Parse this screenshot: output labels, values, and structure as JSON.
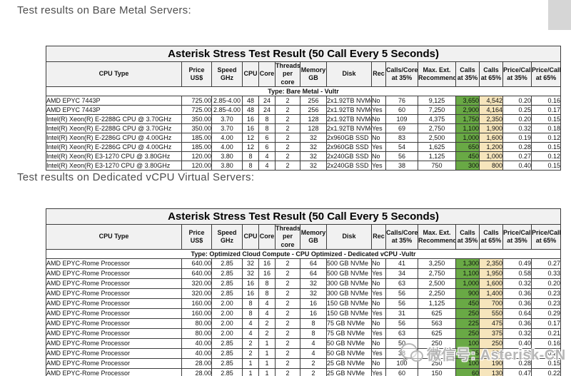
{
  "headings": {
    "bare_metal": "Test results on Bare Metal Servers:",
    "dedicated_vcpu": "Test results on Dedicated vCPU Virtual Servers:"
  },
  "table_title": "Asterisk Stress Test Result (50 Call Every 5 Seconds)",
  "columns": [
    {
      "label": "CPU Type",
      "align": "left"
    },
    {
      "label": "Price US$",
      "align": "right"
    },
    {
      "label": "Speed\nGHz",
      "align": "center"
    },
    {
      "label": "CPU",
      "align": "center"
    },
    {
      "label": "Core",
      "align": "center"
    },
    {
      "label": "Threads\nper core",
      "align": "center"
    },
    {
      "label": "Memory\nGB",
      "align": "center"
    },
    {
      "label": "Disk",
      "align": "left"
    },
    {
      "label": "Rec",
      "align": "left"
    },
    {
      "label": "Calls/Core\nat 35%",
      "align": "center"
    },
    {
      "label": "Max. Ext.\nRecommend",
      "align": "center"
    },
    {
      "label": "Calls\nat 35%",
      "align": "right",
      "highlight": "green"
    },
    {
      "label": "Calls\nat 65%",
      "align": "right",
      "highlight": "tan"
    },
    {
      "label": "Price/Call\nat 35%",
      "align": "right"
    },
    {
      "label": "Price/Call\nat 65%",
      "align": "right"
    }
  ],
  "tables": [
    {
      "group": "Type: Bare Metal - Vultr",
      "rows": [
        [
          "AMD EPYC 7443P",
          "725.00",
          "2.85-4.00",
          "48",
          "24",
          "2",
          "256",
          "2x1.92TB NVMe",
          "No",
          "76",
          "9,125",
          "3,650",
          "4,542",
          "0.20",
          "0.16"
        ],
        [
          "AMD EPYC 7443P",
          "725.00",
          "2.85-4.00",
          "48",
          "24",
          "2",
          "256",
          "2x1.92TB NVMe",
          "Yes",
          "60",
          "7,250",
          "2,900",
          "4,164",
          "0.25",
          "0.17"
        ],
        [
          "Intel(R) Xeon(R) E-2288G CPU @ 3.70GHz",
          "350.00",
          "3.70",
          "16",
          "8",
          "2",
          "128",
          "2x1.92TB NVMe",
          "No",
          "109",
          "4,375",
          "1,750",
          "2,350",
          "0.20",
          "0.15"
        ],
        [
          "Intel(R) Xeon(R) E-2288G CPU @ 3.70GHz",
          "350.00",
          "3.70",
          "16",
          "8",
          "2",
          "128",
          "2x1.92TB NVMe",
          "Yes",
          "69",
          "2,750",
          "1,100",
          "1,900",
          "0.32",
          "0.18"
        ],
        [
          "Intel(R) Xeon(R) E-2286G CPU @ 4.00GHz",
          "185.00",
          "4.00",
          "12",
          "6",
          "2",
          "32",
          "2x960GB SSD",
          "No",
          "83",
          "2,500",
          "1,000",
          "1,600",
          "0.19",
          "0.12"
        ],
        [
          "Intel(R) Xeon(R) E-2286G CPU @ 4.00GHz",
          "185.00",
          "4.00",
          "12",
          "6",
          "2",
          "32",
          "2x960GB SSD",
          "Yes",
          "54",
          "1,625",
          "650",
          "1,200",
          "0.28",
          "0.15"
        ],
        [
          "Intel(R) Xeon(R) E3-1270 CPU @ 3.80GHz",
          "120.00",
          "3.80",
          "8",
          "4",
          "2",
          "32",
          "2x240GB SSD",
          "No",
          "56",
          "1,125",
          "450",
          "1,000",
          "0.27",
          "0.12"
        ],
        [
          "Intel(R) Xeon(R) E3-1270 CPU @ 3.80GHz",
          "120.00",
          "3.80",
          "8",
          "4",
          "2",
          "32",
          "2x240GB SSD",
          "Yes",
          "38",
          "750",
          "300",
          "800",
          "0.40",
          "0.15"
        ]
      ]
    },
    {
      "group": "Type: Optimized Cloud Compute - CPU Optimized - Dedicated vCPU -Vultr",
      "rows": [
        [
          "AMD EPYC-Rome Processor",
          "640.00",
          "2.85",
          "32",
          "16",
          "2",
          "64",
          "500 GB NVMe",
          "No",
          "41",
          "3,250",
          "1,300",
          "2,350",
          "0.49",
          "0.27"
        ],
        [
          "AMD EPYC-Rome Processor",
          "640.00",
          "2.85",
          "32",
          "16",
          "2",
          "64",
          "500 GB NVMe",
          "Yes",
          "34",
          "2,750",
          "1,100",
          "1,950",
          "0.58",
          "0.33"
        ],
        [
          "AMD EPYC-Rome Processor",
          "320.00",
          "2.85",
          "16",
          "8",
          "2",
          "32",
          "300 GB NVMe",
          "No",
          "63",
          "2,500",
          "1,000",
          "1,600",
          "0.32",
          "0.20"
        ],
        [
          "AMD EPYC-Rome Processor",
          "320.00",
          "2.85",
          "16",
          "8",
          "2",
          "32",
          "300 GB NVMe",
          "Yes",
          "56",
          "2,250",
          "900",
          "1,400",
          "0.36",
          "0.23"
        ],
        [
          "AMD EPYC-Rome Processor",
          "160.00",
          "2.00",
          "8",
          "4",
          "2",
          "16",
          "150 GB NVMe",
          "No",
          "56",
          "1,125",
          "450",
          "700",
          "0.36",
          "0.23"
        ],
        [
          "AMD EPYC-Rome Processor",
          "160.00",
          "2.00",
          "8",
          "4",
          "2",
          "16",
          "150 GB NVMe",
          "Yes",
          "31",
          "625",
          "250",
          "550",
          "0.64",
          "0.29"
        ],
        [
          "AMD EPYC-Rome Processor",
          "80.00",
          "2.00",
          "4",
          "2",
          "2",
          "8",
          "75 GB NVMe",
          "No",
          "56",
          "563",
          "225",
          "475",
          "0.36",
          "0.17"
        ],
        [
          "AMD EPYC-Rome Processor",
          "80.00",
          "2.00",
          "4",
          "2",
          "2",
          "8",
          "75 GB NVMe",
          "Yes",
          "63",
          "625",
          "250",
          "375",
          "0.32",
          "0.21"
        ],
        [
          "AMD EPYC-Rome Processor",
          "40.00",
          "2.85",
          "2",
          "1",
          "2",
          "4",
          "50 GB NVMe",
          "No",
          "50",
          "250",
          "100",
          "250",
          "0.40",
          "0.16"
        ],
        [
          "AMD EPYC-Rome Processor",
          "40.00",
          "2.85",
          "2",
          "1",
          "2",
          "4",
          "50 GB NVMe",
          "Yes",
          "38",
          "188",
          "75",
          "200",
          "0.53",
          "0.20"
        ],
        [
          "AMD EPYC-Rome Processor",
          "28.00",
          "2.85",
          "1",
          "1",
          "2",
          "2",
          "25 GB NVMe",
          "No",
          "100",
          "250",
          "100",
          "190",
          "0.28",
          "0.15"
        ],
        [
          "AMD EPYC-Rome Processor",
          "28.00",
          "2.85",
          "1",
          "1",
          "2",
          "2",
          "25 GB NVMe",
          "Yes",
          "60",
          "150",
          "60",
          "130",
          "0.47",
          "0.22"
        ]
      ]
    }
  ],
  "watermark": {
    "label": "微信号: Asterisk-CN",
    "icon": "wechat-icon"
  },
  "colors": {
    "highlight_green": "#69A945",
    "highlight_tan": "#F6E5BC",
    "header_bg": "#F1F1F1"
  }
}
